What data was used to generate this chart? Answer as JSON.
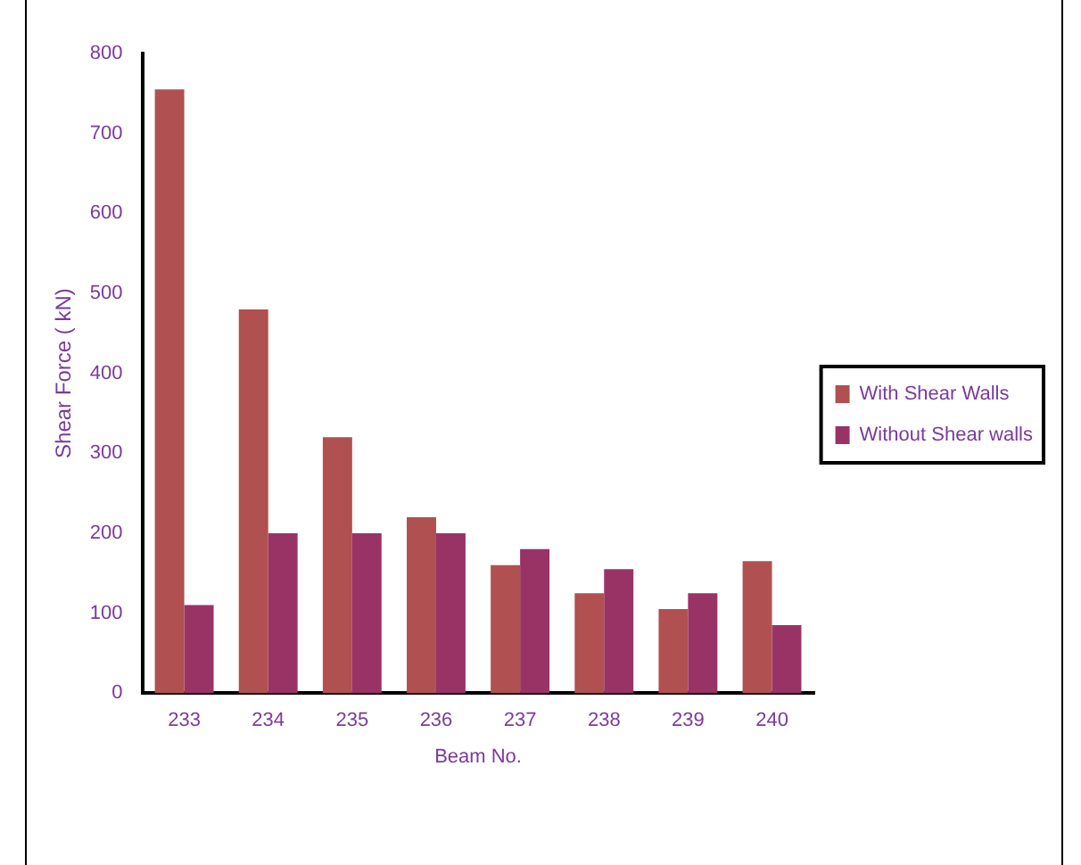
{
  "chart_data": {
    "type": "bar",
    "xlabel": "Beam No.",
    "ylabel": "Shear Force ( kN)",
    "categories": [
      "233",
      "234",
      "235",
      "236",
      "237",
      "238",
      "239",
      "240"
    ],
    "series": [
      {
        "name": "With Shear Walls",
        "color": "#b05050",
        "values": [
          755,
          480,
          320,
          220,
          160,
          125,
          105,
          165
        ]
      },
      {
        "name": "Without Shear walls",
        "color": "#993366",
        "values": [
          110,
          200,
          200,
          200,
          180,
          155,
          125,
          85
        ]
      }
    ],
    "ylim": [
      0,
      800
    ],
    "yticks": [
      0,
      100,
      200,
      300,
      400,
      500,
      600,
      700,
      800
    ],
    "grid": false,
    "legend": "right"
  }
}
